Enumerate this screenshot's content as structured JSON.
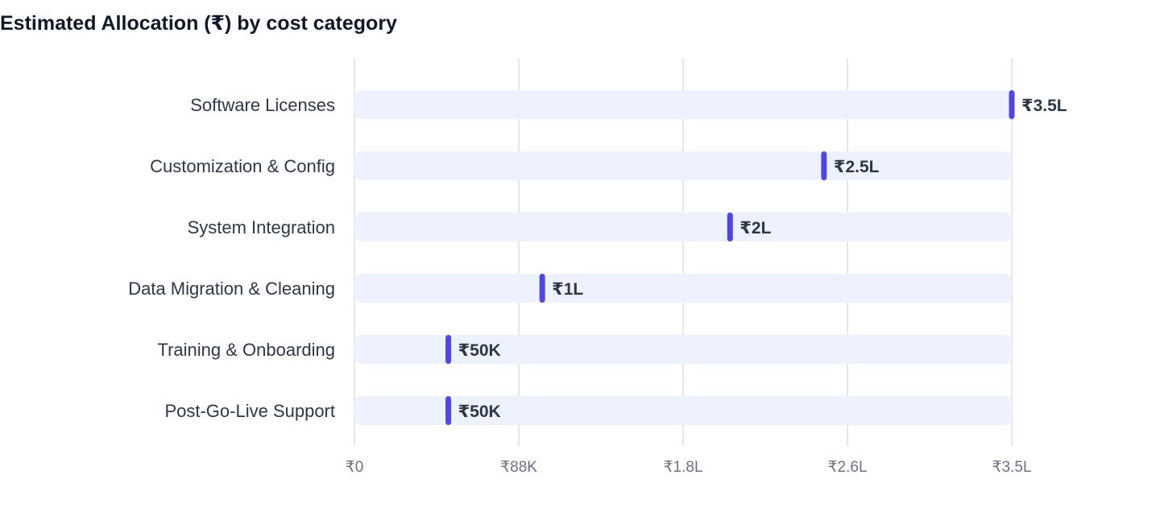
{
  "chart_data": {
    "type": "bar",
    "title": "Estimated Allocation (₹) by cost category",
    "orientation": "horizontal",
    "categories": [
      "Software Licenses",
      "Customization & Config",
      "System Integration",
      "Data Migration & Cleaning",
      "Training & Onboarding",
      "Post-Go-Live Support"
    ],
    "values": [
      350000,
      250000,
      200000,
      100000,
      50000,
      50000
    ],
    "value_labels": [
      "₹3.5L",
      "₹2.5L",
      "₹2L",
      "₹1L",
      "₹50K",
      "₹50K"
    ],
    "xlim": [
      0,
      350000
    ],
    "x_ticks": [
      0,
      87500,
      175000,
      262500,
      350000
    ],
    "x_tick_labels": [
      "₹0",
      "₹88K",
      "₹1.8L",
      "₹2.6L",
      "₹3.5L"
    ],
    "xlabel": "",
    "ylabel": "",
    "grid": true,
    "legend": "none",
    "colors": {
      "marker": "#4f46e5",
      "track": "#eef2ff",
      "grid": "#e5e7eb",
      "category_text": "#2d3748",
      "value_text": "#2d3748",
      "tick_text": "#6b7280",
      "title_text": "#111827"
    }
  }
}
